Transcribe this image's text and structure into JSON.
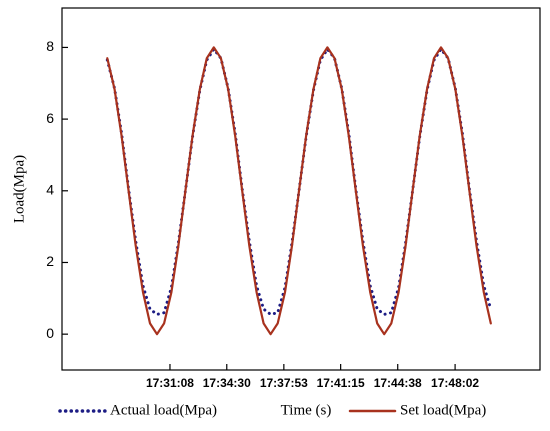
{
  "chart_data": {
    "type": "line",
    "x_label": "Time (s)",
    "y_label": "Load(Mpa)",
    "x": [
      "17:27:25",
      "17:27:51",
      "17:28:16",
      "17:28:41",
      "17:29:06",
      "17:29:32",
      "17:29:57",
      "17:30:22",
      "17:30:47",
      "17:31:13",
      "17:31:38",
      "17:32:03",
      "17:32:28",
      "17:32:54",
      "17:33:19",
      "17:33:44",
      "17:34:09",
      "17:34:35",
      "17:35:00",
      "17:35:25",
      "17:35:50",
      "17:36:16",
      "17:36:41",
      "17:37:06",
      "17:37:31",
      "17:37:57",
      "17:38:22",
      "17:38:47",
      "17:39:12",
      "17:39:38",
      "17:40:03",
      "17:40:28",
      "17:40:53",
      "17:41:19",
      "17:41:44",
      "17:42:09",
      "17:42:34",
      "17:43:00",
      "17:43:25",
      "17:43:50",
      "17:44:15",
      "17:44:41",
      "17:45:06",
      "17:45:31",
      "17:45:56",
      "17:46:22",
      "17:46:47",
      "17:47:12",
      "17:47:37",
      "17:48:03",
      "17:48:28",
      "17:48:53",
      "17:49:18",
      "17:49:44",
      "17:50:09"
    ],
    "series": [
      {
        "name": "Actual load(Mpa)",
        "color": "#1c1c84",
        "style": "dotted",
        "values": [
          7.65,
          6.85,
          5.6,
          4.05,
          2.6,
          1.35,
          0.7,
          0.55,
          0.6,
          1.3,
          2.55,
          4,
          5.5,
          6.8,
          7.65,
          7.95,
          7.7,
          6.85,
          5.6,
          4.05,
          2.6,
          1.35,
          0.7,
          0.55,
          0.6,
          1.3,
          2.55,
          4,
          5.5,
          6.8,
          7.65,
          7.95,
          7.7,
          6.85,
          5.6,
          4.05,
          2.6,
          1.35,
          0.7,
          0.55,
          0.6,
          1.3,
          2.55,
          4,
          5.5,
          6.8,
          7.65,
          7.95,
          7.7,
          6.85,
          5.6,
          4.05,
          2.6,
          1.35,
          0.7
        ]
      },
      {
        "name": "Set load(Mpa)",
        "color": "#a8321e",
        "style": "solid",
        "values": [
          7.7,
          6.83,
          5.53,
          4,
          2.47,
          1.17,
          0.3,
          0,
          0.3,
          1.17,
          2.47,
          4,
          5.53,
          6.83,
          7.7,
          8,
          7.7,
          6.83,
          5.53,
          4,
          2.47,
          1.17,
          0.3,
          0,
          0.3,
          1.17,
          2.47,
          4,
          5.53,
          6.83,
          7.7,
          8,
          7.7,
          6.83,
          5.53,
          4,
          2.47,
          1.17,
          0.3,
          0,
          0.3,
          1.17,
          2.47,
          4,
          5.53,
          6.83,
          7.7,
          8,
          7.7,
          6.83,
          5.53,
          4,
          2.47,
          1.17,
          0.3
        ]
      }
    ],
    "xlim": [
      "17:24:44",
      "17:53:04"
    ],
    "xticks": [
      "17:31:08",
      "17:34:30",
      "17:37:53",
      "17:41:15",
      "17:44:38",
      "17:48:02"
    ],
    "ylim": [
      -1,
      9.1
    ],
    "yticks": [
      0,
      2,
      4,
      6,
      8
    ],
    "legend": "bottom"
  }
}
